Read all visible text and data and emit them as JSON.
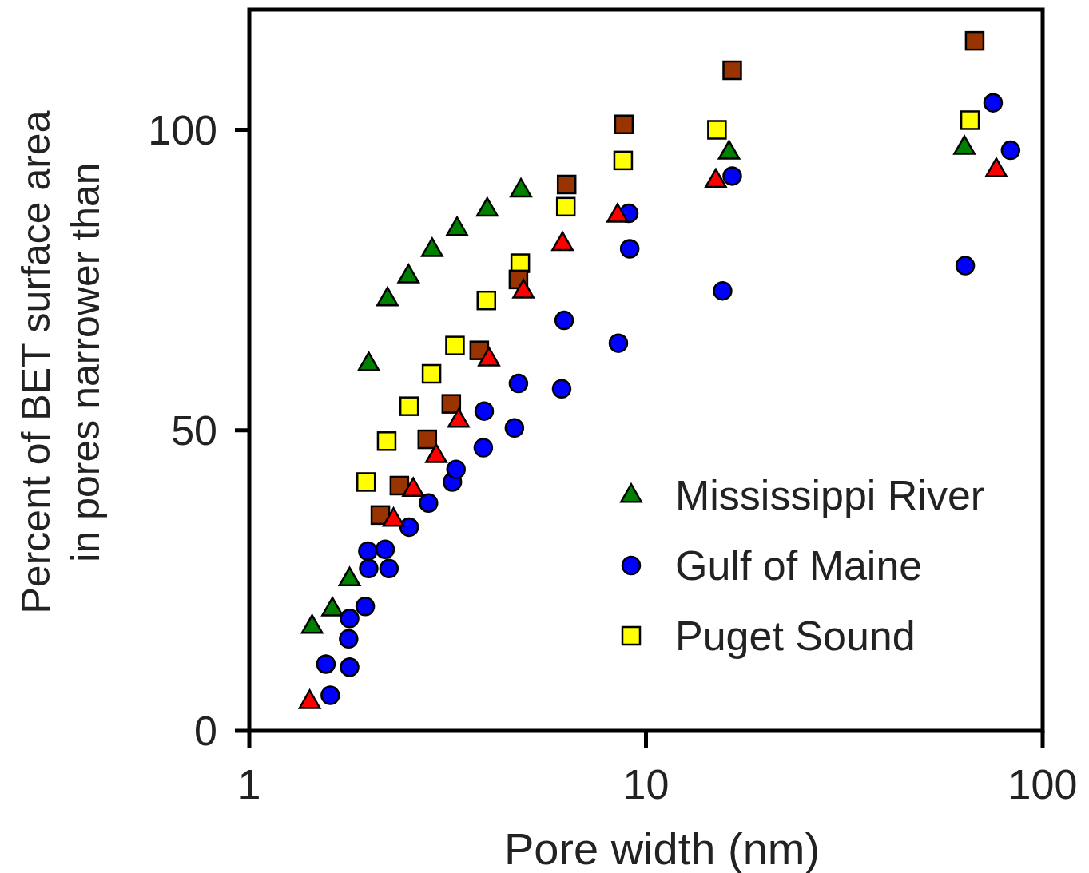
{
  "chart_data": {
    "type": "scatter",
    "xlabel": "Pore width (nm)",
    "ylabel": "Percent of BET surface area\nin pores narrower than",
    "log": "x",
    "xlim": [
      1,
      100
    ],
    "xticks": [
      1,
      10,
      100
    ],
    "ylim": [
      0,
      120
    ],
    "yticks": [
      0,
      50,
      100
    ],
    "grid": false,
    "legend": "bottom right",
    "series": [
      {
        "name": "Mississippi River",
        "color": "#008000",
        "marker": "triangle",
        "x": [
          1.44,
          1.62,
          1.79,
          2.0,
          2.23,
          2.52,
          2.89,
          3.34,
          3.98,
          4.84,
          16.2,
          63.5
        ],
        "values": [
          17.4,
          20.3,
          25.3,
          61.1,
          71.9,
          75.7,
          80.1,
          83.6,
          86.8,
          90.0,
          96.3,
          97.1
        ]
      },
      {
        "name": "Gulf of Maine",
        "color": "#0000ff",
        "marker": "circle",
        "x": [
          1.56,
          1.6,
          1.78,
          1.79,
          1.79,
          1.96,
          1.99,
          2.0,
          2.2,
          2.25,
          2.53,
          2.83,
          3.25,
          3.32,
          3.89,
          3.91,
          4.66,
          4.77,
          6.13,
          6.22,
          8.52,
          9.1,
          9.05,
          15.6,
          16.5,
          63.8,
          75.0,
          83.0
        ],
        "values": [
          11.1,
          5.9,
          15.3,
          10.6,
          18.7,
          20.7,
          29.9,
          27.0,
          30.2,
          27.0,
          33.9,
          37.9,
          41.4,
          43.5,
          47.1,
          53.2,
          50.4,
          57.8,
          56.9,
          68.3,
          64.5,
          80.2,
          86.1,
          73.2,
          92.3,
          77.4,
          104.5,
          96.6
        ]
      },
      {
        "name": "Puget Sound",
        "color": "#ffff00",
        "marker": "square",
        "x": [
          1.97,
          2.22,
          2.53,
          2.88,
          3.3,
          3.96,
          4.82,
          6.28,
          8.76,
          15.1,
          65.6
        ],
        "values": [
          41.4,
          48.2,
          54.0,
          59.4,
          64.1,
          71.6,
          77.8,
          87.2,
          94.9,
          100.0,
          101.6
        ]
      },
      {
        "color": "#993300",
        "marker": "square",
        "x": [
          2.14,
          2.39,
          2.81,
          3.23,
          3.8,
          4.77,
          6.31,
          8.8,
          16.5,
          67.4
        ],
        "values": [
          35.9,
          40.8,
          48.5,
          54.4,
          63.3,
          75.1,
          90.9,
          100.9,
          109.9,
          114.8
        ]
      },
      {
        "color": "#ff0000",
        "marker": "triangle",
        "x": [
          1.42,
          2.31,
          2.59,
          2.96,
          3.37,
          4.02,
          4.91,
          6.16,
          8.48,
          15.0,
          76.4
        ],
        "values": [
          4.9,
          35.2,
          40.2,
          45.8,
          51.7,
          61.9,
          73.2,
          81.1,
          85.8,
          91.6,
          93.4
        ]
      }
    ]
  }
}
